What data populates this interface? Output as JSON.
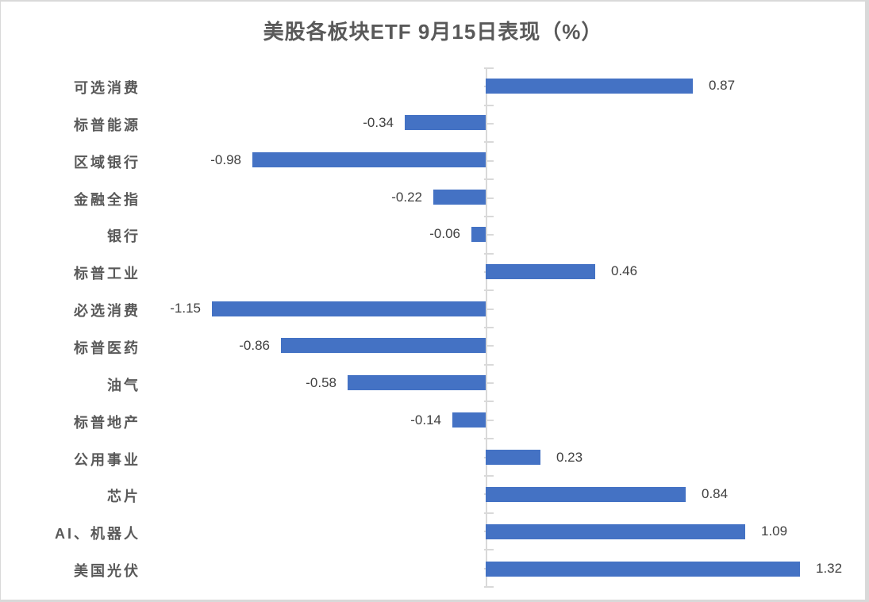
{
  "chart_data": {
    "type": "bar",
    "orientation": "horizontal",
    "title": "美股各板块ETF 9月15日表现（%）",
    "categories": [
      "可选消费",
      "标普能源",
      "区域银行",
      "金融全指",
      "银行",
      "标普工业",
      "必选消费",
      "标普医药",
      "油气",
      "标普地产",
      "公用事业",
      "芯片",
      "AI、机器人",
      "美国光伏"
    ],
    "values": [
      0.87,
      -0.34,
      -0.98,
      -0.22,
      -0.06,
      0.46,
      -1.15,
      -0.86,
      -0.58,
      -0.14,
      0.23,
      0.84,
      1.09,
      1.32
    ],
    "value_labels": [
      "0.87",
      "-0.34",
      "-0.98",
      "-0.22",
      "-0.06",
      "0.46",
      "-1.15",
      "-0.86",
      "-0.58",
      "-0.14",
      "0.23",
      "0.84",
      "1.09",
      "1.32"
    ],
    "xlabel": "",
    "ylabel": "",
    "xlim": [
      -1.6,
      1.6
    ],
    "grid": false,
    "legend": false,
    "bar_color": "#4472C4",
    "axis_color": "#D9D9D9",
    "category_label_color": "#595959",
    "value_label_color": "#404040",
    "title_color": "#595959"
  }
}
